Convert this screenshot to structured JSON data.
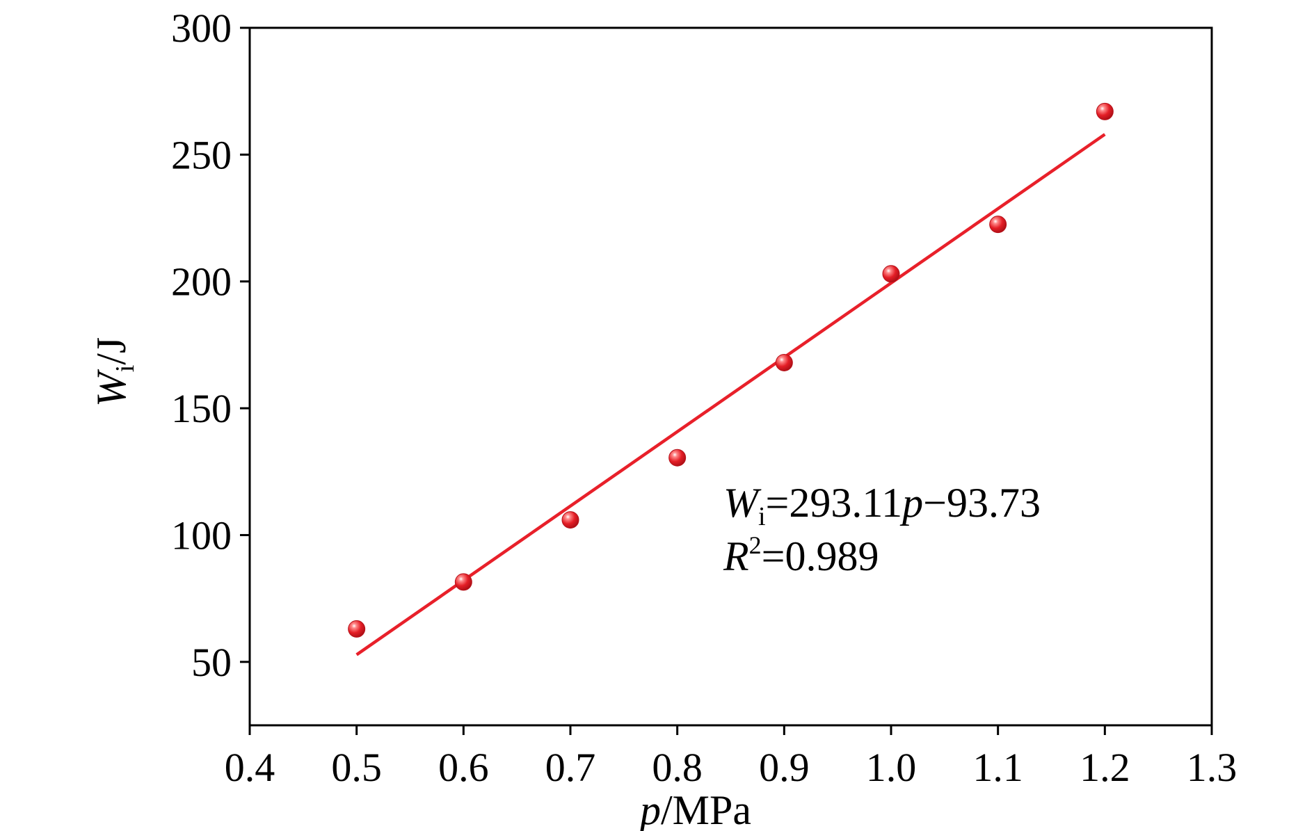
{
  "chart_data": {
    "type": "scatter",
    "title": "",
    "xlabel": {
      "symbol": "p",
      "unit": "/MPa"
    },
    "ylabel": {
      "symbol": "W",
      "subscript": "i",
      "unit": "/J"
    },
    "xlim": [
      0.4,
      1.3
    ],
    "ylim": [
      25,
      300
    ],
    "xticks": [
      {
        "value": 0.4,
        "label": "0.4"
      },
      {
        "value": 0.5,
        "label": "0.5"
      },
      {
        "value": 0.6,
        "label": "0.6"
      },
      {
        "value": 0.7,
        "label": "0.7"
      },
      {
        "value": 0.8,
        "label": "0.8"
      },
      {
        "value": 0.9,
        "label": "0.9"
      },
      {
        "value": 1.0,
        "label": "1.0"
      },
      {
        "value": 1.1,
        "label": "1.1"
      },
      {
        "value": 1.2,
        "label": "1.2"
      },
      {
        "value": 1.3,
        "label": "1.3"
      }
    ],
    "yticks": [
      {
        "value": 50,
        "label": "50"
      },
      {
        "value": 100,
        "label": "100"
      },
      {
        "value": 150,
        "label": "150"
      },
      {
        "value": 200,
        "label": "200"
      },
      {
        "value": 250,
        "label": "250"
      },
      {
        "value": 300,
        "label": "300"
      }
    ],
    "grid": false,
    "series": [
      {
        "x": [
          0.5,
          0.6,
          0.7,
          0.8,
          0.9,
          1.0,
          1.1,
          1.2
        ],
        "y": [
          63,
          81.5,
          106,
          130.5,
          168,
          203,
          222.5,
          267
        ],
        "color": "#e8202a"
      }
    ],
    "fit_line": {
      "slope": 293.11,
      "intercept": -93.73,
      "x_range": [
        0.5,
        1.2
      ],
      "color": "#e8202a"
    },
    "annotation": {
      "equation": {
        "lhs_symbol": "W",
        "lhs_sub": "i",
        "eq1": "=293.11",
        "var": "p",
        "rest": "−93.73"
      },
      "r2": {
        "symbol": "R",
        "sup": "2",
        "value": "=0.989"
      }
    }
  }
}
